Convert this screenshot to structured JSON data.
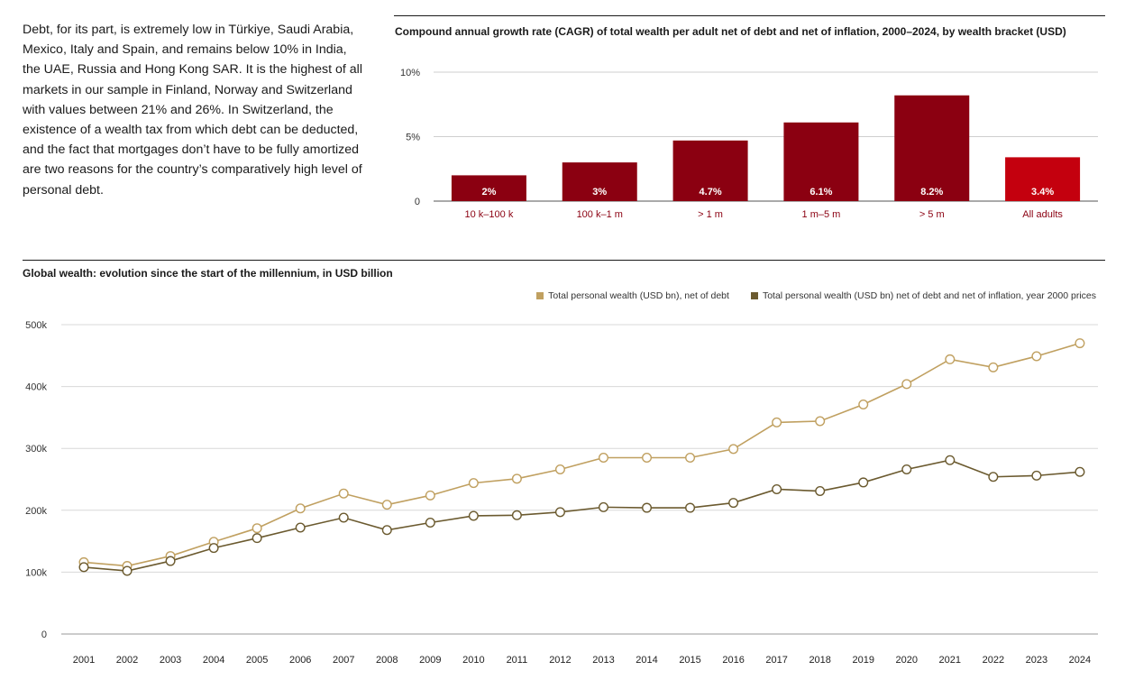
{
  "intro_text": "Debt, for its part, is extremely low in Türkiye, Saudi Arabia, Mexico, Italy and Spain, and remains below 10% in India, the UAE, Russia and Hong Kong SAR. It is the highest of all markets in our sample in Finland, Norway and Switzerland with values between 21% and 26%. In Switzerland, the existence of a wealth tax from which debt can be deducted, and the fact that mortgages don’t have to be fully amortized are two reasons for the country’s comparatively high level of personal debt.",
  "chart_data": [
    {
      "type": "bar",
      "title": "Compound annual growth rate (CAGR) of total wealth per adult net of debt and net of inflation, 2000–2024, by wealth bracket (USD)",
      "categories": [
        "10 k–100 k",
        "100 k–1 m",
        "> 1 m",
        "1 m–5 m",
        "> 5 m",
        "All adults"
      ],
      "values": [
        2,
        3,
        4.7,
        6.1,
        8.2,
        3.4
      ],
      "value_labels": [
        "2%",
        "3%",
        "4.7%",
        "6.1%",
        "8.2%",
        "3.4%"
      ],
      "ytick_values": [
        0,
        5,
        10
      ],
      "ytick_labels": [
        "0",
        "5%",
        "10%"
      ],
      "ylim": [
        0,
        10
      ],
      "colors": [
        "#8b0011",
        "#8b0011",
        "#8b0011",
        "#8b0011",
        "#8b0011",
        "#c4000e"
      ],
      "category_label_color": "#8b0011",
      "grid": true
    },
    {
      "type": "line",
      "title": "Global wealth: evolution since the start of the millennium, in USD billion",
      "x": [
        "2001",
        "2002",
        "2003",
        "2004",
        "2005",
        "2006",
        "2007",
        "2008",
        "2009",
        "2010",
        "2011",
        "2012",
        "2013",
        "2014",
        "2015",
        "2016",
        "2017",
        "2018",
        "2019",
        "2020",
        "2021",
        "2022",
        "2023",
        "2024"
      ],
      "series": [
        {
          "name": "Total personal wealth (USD bn), net of debt",
          "color": "#c0a060",
          "values": [
            116000,
            110000,
            126000,
            149000,
            171000,
            203000,
            227000,
            209000,
            224000,
            244000,
            251000,
            266000,
            285000,
            285000,
            285000,
            299000,
            342000,
            344000,
            371000,
            404000,
            444000,
            431000,
            449000,
            470000
          ]
        },
        {
          "name": "Total personal wealth (USD bn) net of debt and net of inflation, year 2000 prices",
          "color": "#6b5a2f",
          "values": [
            108000,
            102000,
            118000,
            139000,
            155000,
            172000,
            188000,
            168000,
            180000,
            191000,
            192000,
            197000,
            205000,
            204000,
            204000,
            212000,
            234000,
            231000,
            245000,
            266000,
            281000,
            254000,
            256000,
            262000
          ]
        }
      ],
      "ytick_values": [
        0,
        100000,
        200000,
        300000,
        400000,
        500000
      ],
      "ytick_labels": [
        "0",
        "100k",
        "200k",
        "300k",
        "400k",
        "500k"
      ],
      "ylim": [
        0,
        500000
      ],
      "grid": true,
      "legend_position": "top-right"
    }
  ]
}
